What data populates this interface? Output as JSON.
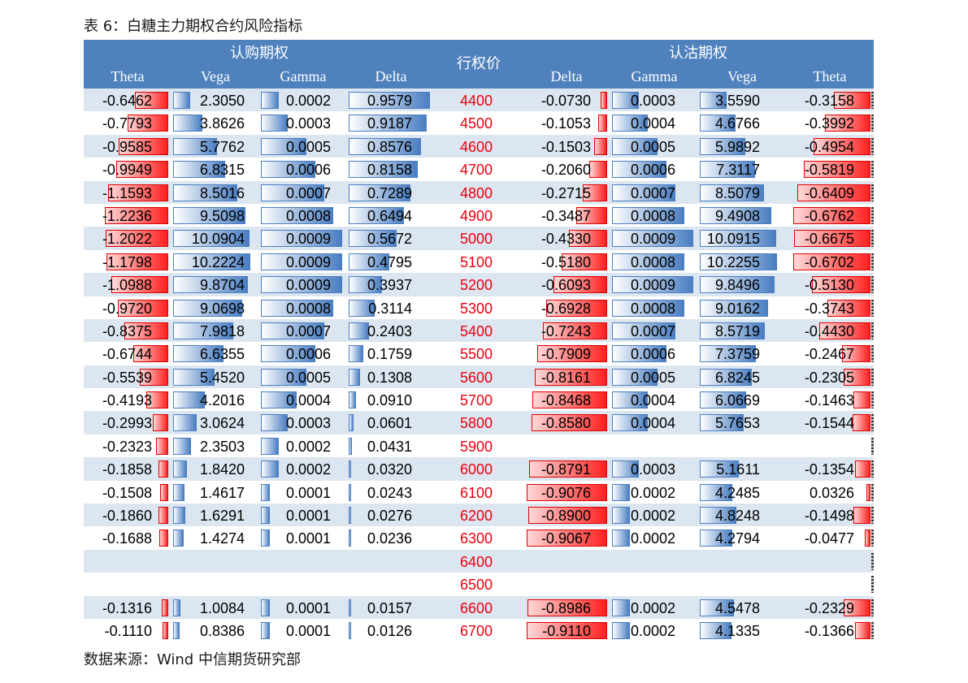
{
  "caption": "表 6：白糖主力期权合约风险指标",
  "source": "数据来源：Wind  中信期货研究部",
  "header": {
    "call_group": "认购期权",
    "put_group": "认沽期权",
    "strike": "行权价",
    "call_cols": [
      "Theta",
      "Vega",
      "Gamma",
      "Delta"
    ],
    "put_cols": [
      "Delta",
      "Gamma",
      "Vega",
      "Theta"
    ]
  },
  "colors": {
    "header_bg": "#4f81bd",
    "stripe": "#dce6f1",
    "strike_text": "#e8000c",
    "neg_bar": "#ff2020",
    "pos_bar": "#4a7ec2"
  },
  "rows": [
    {
      "strike": "4400",
      "c_theta": "-0.6462",
      "c_vega": "2.3050",
      "c_gamma": "0.0002",
      "c_delta": "0.9579",
      "p_delta": "-0.0730",
      "p_gamma": "0.0003",
      "p_vega": "3.5590",
      "p_theta": "-0.3158"
    },
    {
      "strike": "4500",
      "c_theta": "-0.7793",
      "c_vega": "3.8626",
      "c_gamma": "0.0003",
      "c_delta": "0.9187",
      "p_delta": "-0.1053",
      "p_gamma": "0.0004",
      "p_vega": "4.6766",
      "p_theta": "-0.3992"
    },
    {
      "strike": "4600",
      "c_theta": "-0.9585",
      "c_vega": "5.7762",
      "c_gamma": "0.0005",
      "c_delta": "0.8576",
      "p_delta": "-0.1503",
      "p_gamma": "0.0005",
      "p_vega": "5.9892",
      "p_theta": "-0.4954"
    },
    {
      "strike": "4700",
      "c_theta": "-0.9949",
      "c_vega": "6.8315",
      "c_gamma": "0.0006",
      "c_delta": "0.8158",
      "p_delta": "-0.2060",
      "p_gamma": "0.0006",
      "p_vega": "7.3117",
      "p_theta": "-0.5819"
    },
    {
      "strike": "4800",
      "c_theta": "-1.1593",
      "c_vega": "8.5016",
      "c_gamma": "0.0007",
      "c_delta": "0.7289",
      "p_delta": "-0.2715",
      "p_gamma": "0.0007",
      "p_vega": "8.5079",
      "p_theta": "-0.6409"
    },
    {
      "strike": "4900",
      "c_theta": "-1.2236",
      "c_vega": "9.5098",
      "c_gamma": "0.0008",
      "c_delta": "0.6494",
      "p_delta": "-0.3487",
      "p_gamma": "0.0008",
      "p_vega": "9.4908",
      "p_theta": "-0.6762"
    },
    {
      "strike": "5000",
      "c_theta": "-1.2022",
      "c_vega": "10.0904",
      "c_gamma": "0.0009",
      "c_delta": "0.5672",
      "p_delta": "-0.4330",
      "p_gamma": "0.0009",
      "p_vega": "10.0915",
      "p_theta": "-0.6675"
    },
    {
      "strike": "5100",
      "c_theta": "-1.1798",
      "c_vega": "10.2224",
      "c_gamma": "0.0009",
      "c_delta": "0.4795",
      "p_delta": "-0.5180",
      "p_gamma": "0.0008",
      "p_vega": "10.2255",
      "p_theta": "-0.6702"
    },
    {
      "strike": "5200",
      "c_theta": "-1.0988",
      "c_vega": "9.8704",
      "c_gamma": "0.0009",
      "c_delta": "0.3937",
      "p_delta": "-0.6093",
      "p_gamma": "0.0009",
      "p_vega": "9.8496",
      "p_theta": "-0.5130"
    },
    {
      "strike": "5300",
      "c_theta": "-0.9720",
      "c_vega": "9.0698",
      "c_gamma": "0.0008",
      "c_delta": "0.3114",
      "p_delta": "-0.6928",
      "p_gamma": "0.0008",
      "p_vega": "9.0162",
      "p_theta": "-0.3743"
    },
    {
      "strike": "5400",
      "c_theta": "-0.8375",
      "c_vega": "7.9818",
      "c_gamma": "0.0007",
      "c_delta": "0.2403",
      "p_delta": "-0.7243",
      "p_gamma": "0.0007",
      "p_vega": "8.5719",
      "p_theta": "-0.4430"
    },
    {
      "strike": "5500",
      "c_theta": "-0.6744",
      "c_vega": "6.6355",
      "c_gamma": "0.0006",
      "c_delta": "0.1759",
      "p_delta": "-0.7909",
      "p_gamma": "0.0006",
      "p_vega": "7.3759",
      "p_theta": "-0.2467"
    },
    {
      "strike": "5600",
      "c_theta": "-0.5539",
      "c_vega": "5.4520",
      "c_gamma": "0.0005",
      "c_delta": "0.1308",
      "p_delta": "-0.8161",
      "p_gamma": "0.0005",
      "p_vega": "6.8245",
      "p_theta": "-0.2305"
    },
    {
      "strike": "5700",
      "c_theta": "-0.4193",
      "c_vega": "4.2016",
      "c_gamma": "0.0004",
      "c_delta": "0.0910",
      "p_delta": "-0.8468",
      "p_gamma": "0.0004",
      "p_vega": "6.0669",
      "p_theta": "-0.1463"
    },
    {
      "strike": "5800",
      "c_theta": "-0.2993",
      "c_vega": "3.0624",
      "c_gamma": "0.0003",
      "c_delta": "0.0601",
      "p_delta": "-0.8580",
      "p_gamma": "0.0004",
      "p_vega": "5.7653",
      "p_theta": "-0.1544"
    },
    {
      "strike": "5900",
      "c_theta": "-0.2323",
      "c_vega": "2.3503",
      "c_gamma": "0.0002",
      "c_delta": "0.0431",
      "p_delta": "",
      "p_gamma": "",
      "p_vega": "",
      "p_theta": ""
    },
    {
      "strike": "6000",
      "c_theta": "-0.1858",
      "c_vega": "1.8420",
      "c_gamma": "0.0002",
      "c_delta": "0.0320",
      "p_delta": "-0.8791",
      "p_gamma": "0.0003",
      "p_vega": "5.1611",
      "p_theta": "-0.1354"
    },
    {
      "strike": "6100",
      "c_theta": "-0.1508",
      "c_vega": "1.4617",
      "c_gamma": "0.0001",
      "c_delta": "0.0243",
      "p_delta": "-0.9076",
      "p_gamma": "0.0002",
      "p_vega": "4.2485",
      "p_theta": "0.0326"
    },
    {
      "strike": "6200",
      "c_theta": "-0.1860",
      "c_vega": "1.6291",
      "c_gamma": "0.0001",
      "c_delta": "0.0276",
      "p_delta": "-0.8900",
      "p_gamma": "0.0002",
      "p_vega": "4.8248",
      "p_theta": "-0.1498"
    },
    {
      "strike": "6300",
      "c_theta": "-0.1688",
      "c_vega": "1.4274",
      "c_gamma": "0.0001",
      "c_delta": "0.0236",
      "p_delta": "-0.9067",
      "p_gamma": "0.0002",
      "p_vega": "4.2794",
      "p_theta": "-0.0477"
    },
    {
      "strike": "6400",
      "c_theta": "",
      "c_vega": "",
      "c_gamma": "",
      "c_delta": "",
      "p_delta": "",
      "p_gamma": "",
      "p_vega": "",
      "p_theta": ""
    },
    {
      "strike": "6500",
      "c_theta": "",
      "c_vega": "",
      "c_gamma": "",
      "c_delta": "",
      "p_delta": "",
      "p_gamma": "",
      "p_vega": "",
      "p_theta": ""
    },
    {
      "strike": "6600",
      "c_theta": "-0.1316",
      "c_vega": "1.0084",
      "c_gamma": "0.0001",
      "c_delta": "0.0157",
      "p_delta": "-0.8986",
      "p_gamma": "0.0002",
      "p_vega": "4.5478",
      "p_theta": "-0.2329"
    },
    {
      "strike": "6700",
      "c_theta": "-0.1110",
      "c_vega": "0.8386",
      "c_gamma": "0.0001",
      "c_delta": "0.0126",
      "p_delta": "-0.9110",
      "p_gamma": "0.0002",
      "p_vega": "4.1335",
      "p_theta": "-0.1366"
    }
  ]
}
